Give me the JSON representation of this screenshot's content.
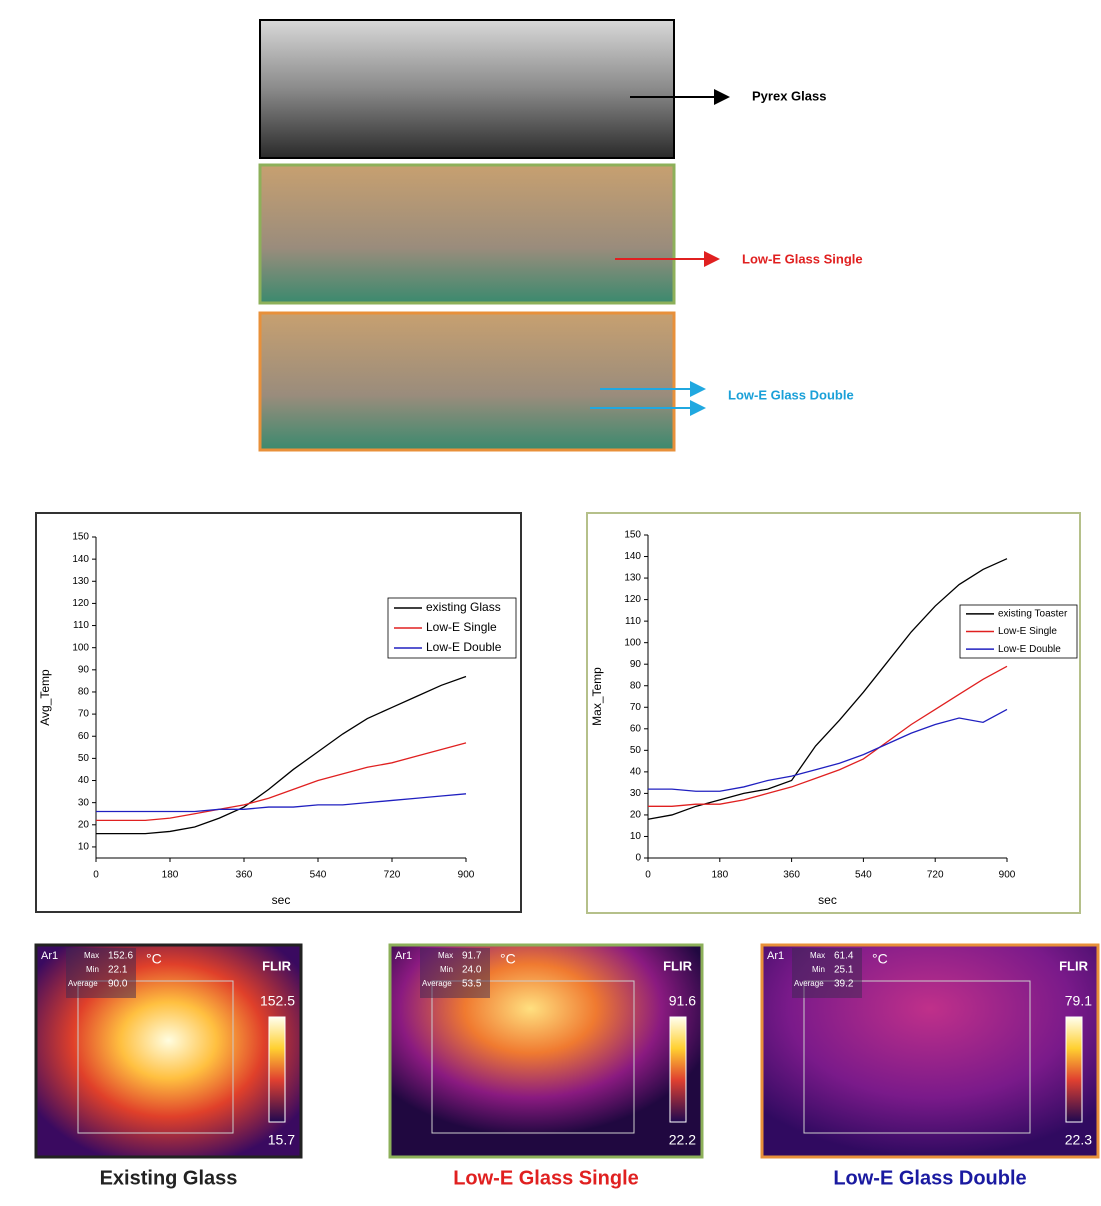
{
  "photos": [
    {
      "label": "Pyrex Glass"
    },
    {
      "label": "Low-E Glass Single"
    },
    {
      "label": "Low-E Glass Double"
    }
  ],
  "chart_data": [
    {
      "type": "line",
      "y_label": "Avg_Temp",
      "x_label": "sec",
      "x": [
        0,
        60,
        120,
        180,
        240,
        300,
        360,
        420,
        480,
        540,
        600,
        660,
        720,
        780,
        840,
        900
      ],
      "series": [
        {
          "name": "existing Glass",
          "color": "#000000",
          "values": [
            16,
            16,
            16,
            17,
            19,
            23,
            28,
            36,
            45,
            53,
            61,
            68,
            73,
            78,
            83,
            87
          ]
        },
        {
          "name": "Low-E Single",
          "color": "#e02020",
          "values": [
            22,
            22,
            22,
            23,
            25,
            27,
            29,
            32,
            36,
            40,
            43,
            46,
            48,
            51,
            54,
            57
          ]
        },
        {
          "name": "Low-E Double",
          "color": "#2020c0",
          "values": [
            26,
            26,
            26,
            26,
            26,
            27,
            27,
            28,
            28,
            29,
            29,
            30,
            31,
            32,
            33,
            34
          ]
        }
      ],
      "xlim": [
        0,
        900
      ],
      "xticks": [
        0,
        180,
        360,
        540,
        720,
        900
      ],
      "ylim": [
        5,
        150
      ],
      "yticks": [
        10,
        20,
        30,
        40,
        50,
        60,
        70,
        80,
        90,
        100,
        110,
        120,
        130,
        140,
        150
      ]
    },
    {
      "type": "line",
      "y_label": "Max_Temp",
      "x_label": "sec",
      "x": [
        0,
        60,
        120,
        180,
        240,
        300,
        360,
        420,
        480,
        540,
        600,
        660,
        720,
        780,
        840,
        900
      ],
      "series": [
        {
          "name": "existing Toaster",
          "color": "#000000",
          "values": [
            18,
            20,
            24,
            27,
            30,
            32,
            36,
            52,
            64,
            77,
            91,
            105,
            117,
            127,
            134,
            139
          ]
        },
        {
          "name": "Low-E Single",
          "color": "#e02020",
          "values": [
            24,
            24,
            25,
            25,
            27,
            30,
            33,
            37,
            41,
            46,
            54,
            62,
            69,
            76,
            83,
            89
          ]
        },
        {
          "name": "Low-E Double",
          "color": "#2020c0",
          "values": [
            32,
            32,
            31,
            31,
            33,
            36,
            38,
            41,
            44,
            48,
            53,
            58,
            62,
            65,
            63,
            69
          ]
        }
      ],
      "xlim": [
        0,
        900
      ],
      "xticks": [
        0,
        180,
        360,
        540,
        720,
        900
      ],
      "ylim": [
        0,
        150
      ],
      "yticks": [
        0,
        10,
        20,
        30,
        40,
        50,
        60,
        70,
        80,
        90,
        100,
        110,
        120,
        130,
        140,
        150
      ]
    }
  ],
  "thermal": [
    {
      "area": "Ar1",
      "max": "152.6",
      "min": "22.1",
      "average": "90.0",
      "unit": "°C",
      "brand": "FLIR",
      "scale_top": "152.5",
      "scale_bottom": "15.7",
      "caption": "Existing Glass"
    },
    {
      "area": "Ar1",
      "max": "91.7",
      "min": "24.0",
      "average": "53.5",
      "unit": "°C",
      "brand": "FLIR",
      "scale_top": "91.6",
      "scale_bottom": "22.2",
      "caption": "Low-E Glass Single"
    },
    {
      "area": "Ar1",
      "max": "61.4",
      "min": "25.1",
      "average": "39.2",
      "unit": "°C",
      "brand": "FLIR",
      "scale_top": "79.1",
      "scale_bottom": "22.3",
      "caption": "Low-E Glass Double"
    }
  ],
  "labels": {
    "max": "Max",
    "min": "Min",
    "average": "Average"
  }
}
